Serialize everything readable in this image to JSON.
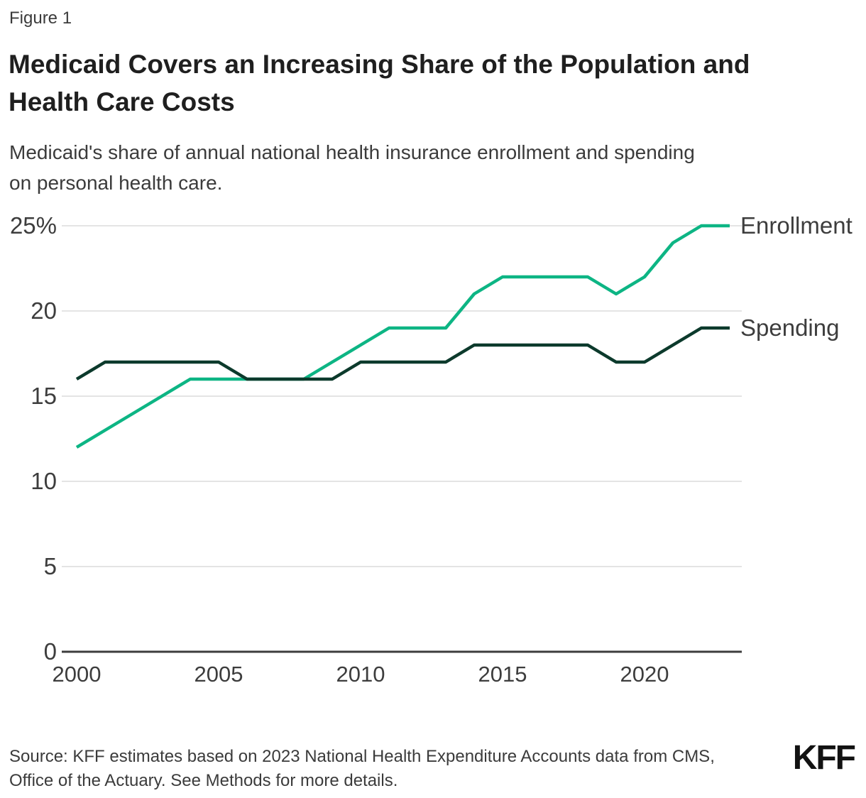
{
  "header": {
    "figure_label": "Figure 1",
    "title_lines": [
      "Medicaid Covers an Increasing Share of the Population and",
      "Health Care Costs"
    ],
    "subtitle_lines": [
      "Medicaid's share of annual national health insurance enrollment and spending",
      "on personal health care."
    ]
  },
  "chart_data": {
    "type": "line",
    "title": "Medicaid Covers an Increasing Share of the Population and Health Care Costs",
    "subtitle": "Medicaid's share of annual national health insurance enrollment and spending on personal health care.",
    "x": [
      2000,
      2001,
      2002,
      2003,
      2004,
      2005,
      2006,
      2007,
      2008,
      2009,
      2010,
      2011,
      2012,
      2013,
      2014,
      2015,
      2016,
      2017,
      2018,
      2019,
      2020,
      2021,
      2022,
      2023
    ],
    "series": [
      {
        "name": "Enrollment",
        "color": "#0db584",
        "values": [
          12,
          13,
          14,
          15,
          16,
          16,
          16,
          16,
          16,
          17,
          18,
          19,
          19,
          19,
          21,
          22,
          22,
          22,
          22,
          21,
          22,
          24,
          25,
          25
        ]
      },
      {
        "name": "Spending",
        "color": "#0c3a2c",
        "values": [
          16,
          17,
          17,
          17,
          17,
          17,
          16,
          16,
          16,
          16,
          17,
          17,
          17,
          17,
          18,
          18,
          18,
          18,
          18,
          17,
          17,
          18,
          19,
          19
        ]
      }
    ],
    "xlabel": "",
    "ylabel": "",
    "ylim": [
      0,
      25
    ],
    "xlim": [
      2000,
      2023
    ],
    "y_ticks": [
      {
        "value": 0,
        "label": "0"
      },
      {
        "value": 5,
        "label": "5"
      },
      {
        "value": 10,
        "label": "10"
      },
      {
        "value": 15,
        "label": "15"
      },
      {
        "value": 20,
        "label": "20"
      },
      {
        "value": 25,
        "label": "25%"
      }
    ],
    "x_ticks": [
      2000,
      2005,
      2010,
      2015,
      2020
    ],
    "grid": "horizontal-light",
    "legend_position": "right-end-of-line-labels"
  },
  "footer": {
    "source_lines": [
      "Source: KFF estimates based on 2023 National Health Expenditure Accounts data from CMS,",
      "Office of the Actuary. See Methods for more details."
    ],
    "logo_text": "KFF"
  },
  "colors": {
    "enrollment_teal": "#0db584",
    "spending_dark_green": "#0c3a2c",
    "text_gray": "#3d3d3d",
    "title_black": "#1f1f1f",
    "gridline_gray": "#dcdcdc",
    "axis_gray": "#3d3d3d",
    "background": "#ffffff"
  }
}
